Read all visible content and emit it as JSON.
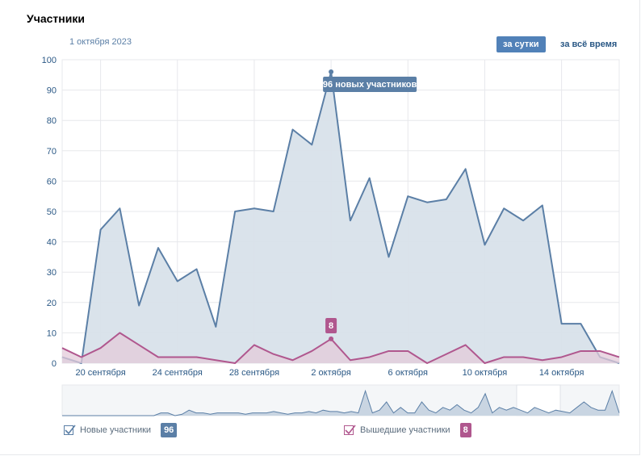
{
  "header": {
    "title": "Участники",
    "date": "1 октября 2023"
  },
  "period": {
    "day": "за сутки",
    "all": "за всё время"
  },
  "colors": {
    "new": "#5b7fa6",
    "newFill": "#d8e1ea",
    "left": "#b0578e",
    "leftFill": "#e3cbd9",
    "grid": "#e7e8ec",
    "axis": "#2a5885"
  },
  "legend": {
    "new": {
      "label": "Новые участники",
      "badge": "96"
    },
    "left": {
      "label": "Вышедшие участники",
      "badge": "8"
    }
  },
  "chart_data": {
    "type": "area",
    "ylim": [
      0,
      100
    ],
    "yticks": [
      0,
      10,
      20,
      30,
      40,
      50,
      60,
      70,
      80,
      90,
      100
    ],
    "xticks": [
      "20 сентября",
      "24 сентября",
      "28 сентября",
      "2 октября",
      "6 октября",
      "10 октября",
      "14 октября"
    ],
    "xtick_index": [
      2,
      6,
      10,
      14,
      18,
      22,
      26
    ],
    "series": [
      {
        "name": "Новые участники",
        "values": [
          2,
          0,
          44,
          51,
          19,
          38,
          27,
          31,
          12,
          50,
          51,
          50,
          77,
          72,
          96,
          47,
          61,
          35,
          55,
          53,
          54,
          64,
          39,
          51,
          47,
          52,
          13,
          13,
          2,
          0
        ]
      },
      {
        "name": "Вышедшие участники",
        "values": [
          5,
          2,
          5,
          10,
          6,
          2,
          2,
          2,
          1,
          0,
          6,
          3,
          1,
          4,
          8,
          1,
          2,
          4,
          4,
          0,
          3,
          6,
          0,
          2,
          2,
          1,
          2,
          4,
          4,
          2
        ]
      }
    ],
    "annotations": [
      {
        "text": "96 новых участников",
        "series": 0,
        "index": 14
      },
      {
        "text": "8",
        "series": 1,
        "index": 14
      }
    ]
  }
}
